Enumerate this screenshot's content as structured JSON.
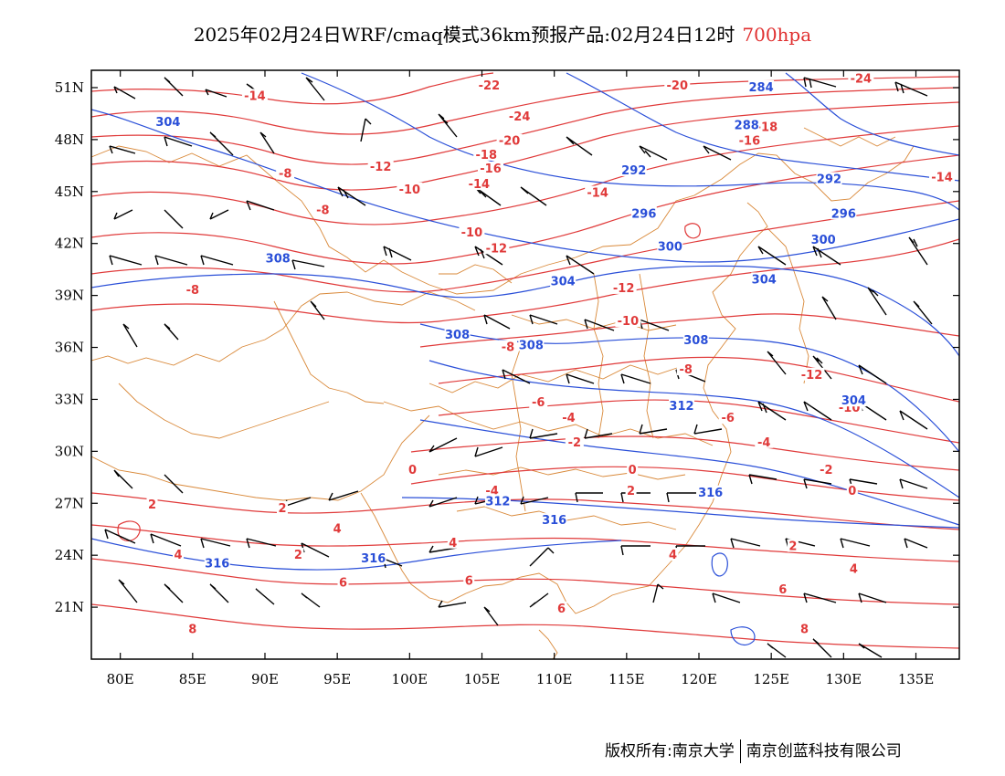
{
  "title": {
    "main": "2025年02月24日WRF/cmaq模式36km预报产品:02月24日12时",
    "level": "700hpa"
  },
  "colors": {
    "temperature": "#e03a3a",
    "geopotential": "#2a4fd8",
    "border": "#d9893a",
    "wind": "#000000"
  },
  "axes": {
    "lon_ticks": [
      "80E",
      "85E",
      "90E",
      "95E",
      "100E",
      "105E",
      "110E",
      "115E",
      "120E",
      "125E",
      "130E",
      "135E"
    ],
    "lon_values": [
      80,
      85,
      90,
      95,
      100,
      105,
      110,
      115,
      120,
      125,
      130,
      135
    ],
    "lat_ticks": [
      "51N",
      "48N",
      "45N",
      "42N",
      "39N",
      "36N",
      "33N",
      "30N",
      "27N",
      "24N",
      "21N"
    ],
    "lat_values": [
      51,
      48,
      45,
      42,
      39,
      36,
      33,
      30,
      27,
      24,
      21
    ],
    "lon_range": [
      78,
      138
    ],
    "lat_range": [
      18,
      52
    ]
  },
  "temperature_labels": [
    {
      "text": "-14",
      "lon": 89.3,
      "lat": 50.4
    },
    {
      "text": "-22",
      "lon": 105.5,
      "lat": 51.0
    },
    {
      "text": "-24",
      "lon": 107.6,
      "lat": 49.2
    },
    {
      "text": "-20",
      "lon": 106.9,
      "lat": 47.8
    },
    {
      "text": "-18",
      "lon": 105.3,
      "lat": 47.0
    },
    {
      "text": "-16",
      "lon": 105.6,
      "lat": 46.2
    },
    {
      "text": "-12",
      "lon": 98.0,
      "lat": 46.3
    },
    {
      "text": "-14",
      "lon": 104.8,
      "lat": 45.3
    },
    {
      "text": "-8",
      "lon": 91.4,
      "lat": 45.9
    },
    {
      "text": "-10",
      "lon": 100.0,
      "lat": 45.0
    },
    {
      "text": "-8",
      "lon": 94.0,
      "lat": 43.8
    },
    {
      "text": "-14",
      "lon": 113.0,
      "lat": 44.8
    },
    {
      "text": "-10",
      "lon": 104.3,
      "lat": 42.5
    },
    {
      "text": "-12",
      "lon": 106.0,
      "lat": 41.6
    },
    {
      "text": "-12",
      "lon": 114.8,
      "lat": 39.3
    },
    {
      "text": "-10",
      "lon": 115.1,
      "lat": 37.4
    },
    {
      "text": "-8",
      "lon": 85.0,
      "lat": 39.2
    },
    {
      "text": "-8",
      "lon": 106.8,
      "lat": 35.9
    },
    {
      "text": "-8",
      "lon": 119.1,
      "lat": 34.6
    },
    {
      "text": "-12",
      "lon": 127.8,
      "lat": 34.3
    },
    {
      "text": "-10",
      "lon": 130.4,
      "lat": 32.4
    },
    {
      "text": "-6",
      "lon": 108.9,
      "lat": 32.7
    },
    {
      "text": "-4",
      "lon": 111.0,
      "lat": 31.8
    },
    {
      "text": "-6",
      "lon": 122.0,
      "lat": 31.8
    },
    {
      "text": "-2",
      "lon": 111.4,
      "lat": 30.4
    },
    {
      "text": "-4",
      "lon": 124.5,
      "lat": 30.4
    },
    {
      "text": "0",
      "lon": 100.2,
      "lat": 28.8
    },
    {
      "text": "0",
      "lon": 115.4,
      "lat": 28.8
    },
    {
      "text": "-2",
      "lon": 128.8,
      "lat": 28.8
    },
    {
      "text": "-4",
      "lon": 105.7,
      "lat": 27.6
    },
    {
      "text": "2",
      "lon": 115.3,
      "lat": 27.6
    },
    {
      "text": "0",
      "lon": 130.6,
      "lat": 27.6
    },
    {
      "text": "-20",
      "lon": 118.5,
      "lat": 51.0
    },
    {
      "text": "-24",
      "lon": 131.2,
      "lat": 51.4
    },
    {
      "text": "-18",
      "lon": 124.7,
      "lat": 48.6
    },
    {
      "text": "-16",
      "lon": 123.5,
      "lat": 47.8
    },
    {
      "text": "-14",
      "lon": 136.8,
      "lat": 45.7
    },
    {
      "text": "2",
      "lon": 82.2,
      "lat": 26.8
    },
    {
      "text": "2",
      "lon": 91.2,
      "lat": 26.6
    },
    {
      "text": "4",
      "lon": 95.0,
      "lat": 25.4
    },
    {
      "text": "4",
      "lon": 84.0,
      "lat": 23.9
    },
    {
      "text": "2",
      "lon": 92.3,
      "lat": 23.9
    },
    {
      "text": "4",
      "lon": 103.0,
      "lat": 24.6
    },
    {
      "text": "6",
      "lon": 95.4,
      "lat": 22.3
    },
    {
      "text": "6",
      "lon": 104.1,
      "lat": 22.4
    },
    {
      "text": "4",
      "lon": 118.2,
      "lat": 23.9
    },
    {
      "text": "2",
      "lon": 126.5,
      "lat": 24.4
    },
    {
      "text": "4",
      "lon": 130.7,
      "lat": 23.1
    },
    {
      "text": "6",
      "lon": 110.5,
      "lat": 20.8
    },
    {
      "text": "6",
      "lon": 125.8,
      "lat": 21.9
    },
    {
      "text": "8",
      "lon": 85.0,
      "lat": 19.6
    },
    {
      "text": "8",
      "lon": 127.3,
      "lat": 19.6
    }
  ],
  "geopotential_labels": [
    {
      "text": "304",
      "lon": 83.3,
      "lat": 48.9
    },
    {
      "text": "284",
      "lon": 124.3,
      "lat": 50.9
    },
    {
      "text": "288",
      "lon": 123.3,
      "lat": 48.7
    },
    {
      "text": "292",
      "lon": 115.5,
      "lat": 46.1
    },
    {
      "text": "292",
      "lon": 129.0,
      "lat": 45.6
    },
    {
      "text": "296",
      "lon": 116.2,
      "lat": 43.6
    },
    {
      "text": "296",
      "lon": 130.0,
      "lat": 43.6
    },
    {
      "text": "300",
      "lon": 118.0,
      "lat": 41.7
    },
    {
      "text": "300",
      "lon": 128.6,
      "lat": 42.1
    },
    {
      "text": "304",
      "lon": 110.6,
      "lat": 39.7
    },
    {
      "text": "304",
      "lon": 124.5,
      "lat": 39.8
    },
    {
      "text": "308",
      "lon": 90.9,
      "lat": 41.0
    },
    {
      "text": "308",
      "lon": 103.3,
      "lat": 36.6
    },
    {
      "text": "308",
      "lon": 108.4,
      "lat": 36.0
    },
    {
      "text": "308",
      "lon": 119.8,
      "lat": 36.3
    },
    {
      "text": "312",
      "lon": 118.8,
      "lat": 32.5
    },
    {
      "text": "304",
      "lon": 130.7,
      "lat": 32.8
    },
    {
      "text": "312",
      "lon": 106.1,
      "lat": 27.0
    },
    {
      "text": "316",
      "lon": 120.8,
      "lat": 27.5
    },
    {
      "text": "316",
      "lon": 110.0,
      "lat": 25.9
    },
    {
      "text": "316",
      "lon": 86.7,
      "lat": 23.4
    },
    {
      "text": "316",
      "lon": 97.5,
      "lat": 23.7
    }
  ],
  "footer": {
    "left": "版权所有:南京大学",
    "right": "南京创蓝科技有限公司"
  }
}
